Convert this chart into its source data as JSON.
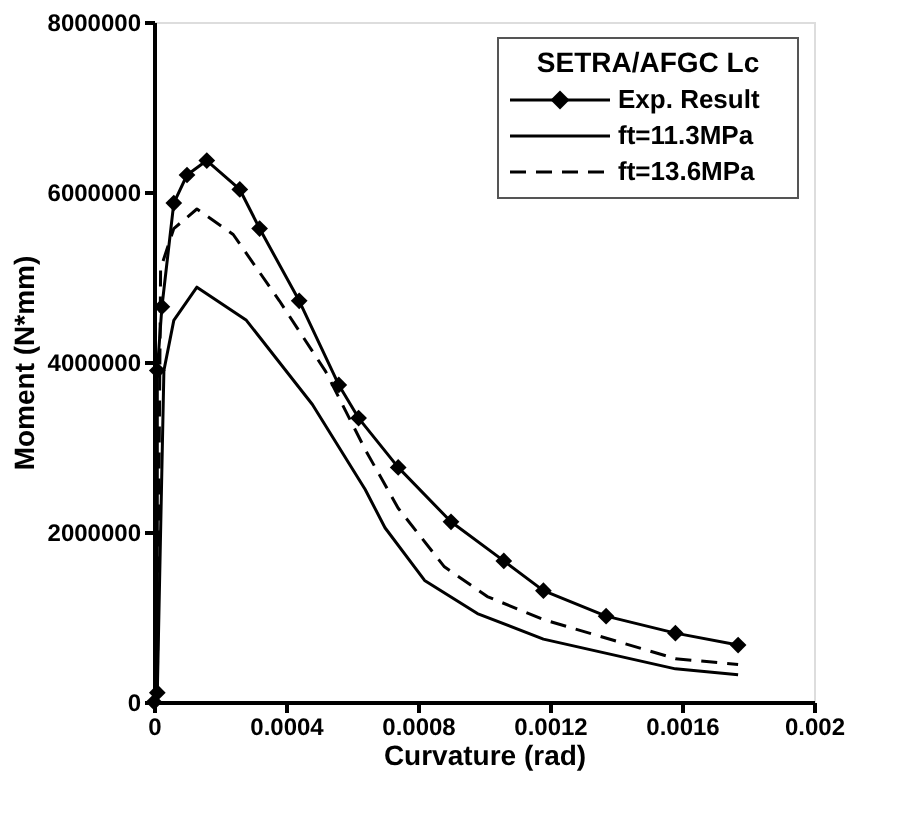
{
  "chart_data": {
    "type": "line",
    "xlabel": "Curvature (rad)",
    "ylabel": "Moment (N*mm)",
    "legend_title": "SETRA/AFGC Lc",
    "legend": "top right",
    "grid": false,
    "xlim": [
      0,
      0.002
    ],
    "xticks": [
      0,
      0.0004,
      0.0008,
      0.0012,
      0.0016,
      0.002
    ],
    "ylim": [
      0,
      8000000
    ],
    "yticks": [
      0,
      2000000,
      4000000,
      6000000,
      8000000
    ],
    "series": [
      {
        "name": "Exp. Result",
        "color": "#000000",
        "marker": "diamond",
        "line_style": "solid",
        "x": [
          0,
          1e-05,
          1e-05,
          2.4e-05,
          6e-05,
          0.0001,
          0.00016,
          0.00026,
          0.00032,
          0.00044,
          0.00056,
          0.00062,
          0.00074,
          0.0009,
          0.00106,
          0.00118,
          0.00137,
          0.00158,
          0.00177
        ],
        "values": [
          0,
          110000,
          3900000,
          4650000,
          5870000,
          6200000,
          6370000,
          6030000,
          5570000,
          4720000,
          3730000,
          3340000,
          2760000,
          2120000,
          1660000,
          1310000,
          1010000,
          810000,
          670000
        ]
      },
      {
        "name": "ft=11.3MPa",
        "color": "#000000",
        "marker": "none",
        "line_style": "solid",
        "x": [
          0,
          1e-05,
          3e-05,
          6e-05,
          0.00013,
          0.00028,
          0.00048,
          0.00064,
          0.0007,
          0.00082,
          0.00098,
          0.00118,
          0.00158,
          0.00177
        ],
        "values": [
          0,
          110000,
          3900000,
          4490000,
          4880000,
          4490000,
          3500000,
          2500000,
          2050000,
          1430000,
          1040000,
          740000,
          390000,
          320000
        ]
      },
      {
        "name": "ft=13.6MPa",
        "color": "#000000",
        "marker": "none",
        "line_style": "dashed",
        "x": [
          0,
          1e-05,
          2e-05,
          6e-05,
          0.00013,
          0.00024,
          0.00038,
          0.00052,
          0.00064,
          0.00074,
          0.00088,
          0.00101,
          0.00118,
          0.00158,
          0.00177
        ],
        "values": [
          0,
          110000,
          5100000,
          5570000,
          5800000,
          5500000,
          4720000,
          3890000,
          2970000,
          2280000,
          1590000,
          1240000,
          970000,
          510000,
          440000
        ]
      }
    ]
  }
}
